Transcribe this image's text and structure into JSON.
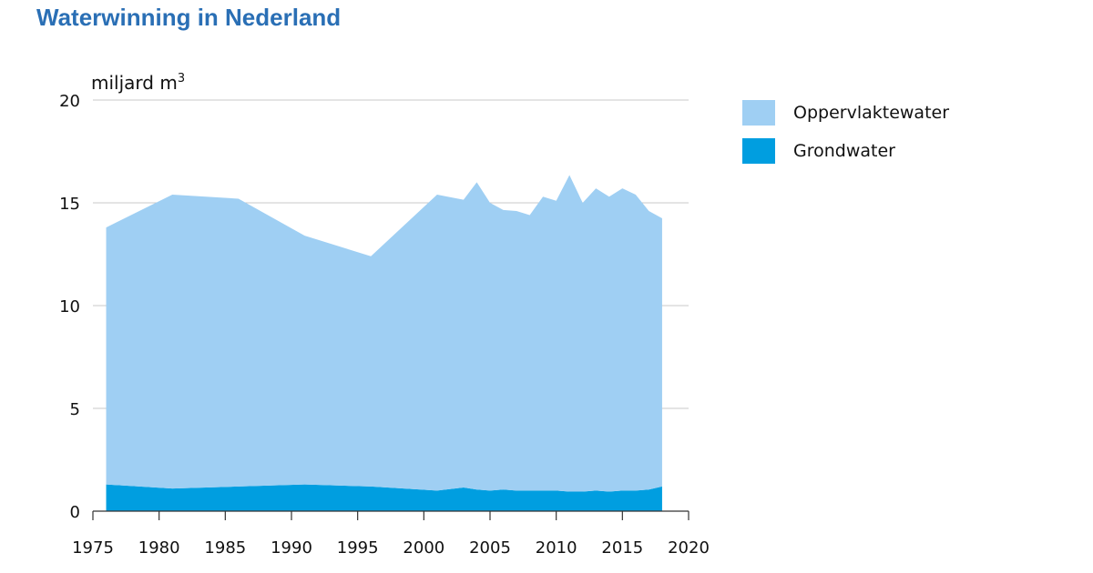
{
  "page": {
    "title": "Waterwinning in Nederland"
  },
  "chart_data": {
    "type": "area",
    "stacked": true,
    "title": "Waterwinning in Nederland",
    "ylabel_prefix": "miljard m",
    "ylabel_sup": "3",
    "xlim": [
      1975,
      2020
    ],
    "ylim": [
      0,
      20
    ],
    "xticks": [
      1975,
      1980,
      1985,
      1990,
      1995,
      2000,
      2005,
      2010,
      2015,
      2020
    ],
    "yticks": [
      0,
      5,
      10,
      15,
      20
    ],
    "grid": "horizontal",
    "legend_position": "right",
    "x": [
      1976,
      1981,
      1986,
      1991,
      1996,
      2001,
      2003,
      2004,
      2005,
      2006,
      2007,
      2008,
      2009,
      2010,
      2011,
      2012,
      2013,
      2014,
      2015,
      2016,
      2017,
      2018
    ],
    "series": [
      {
        "name": "Grondwater",
        "color": "#009ee0",
        "values": [
          1.3,
          1.1,
          1.2,
          1.3,
          1.2,
          1.0,
          1.15,
          1.05,
          1.0,
          1.05,
          1.0,
          1.0,
          1.0,
          1.0,
          0.95,
          0.95,
          1.0,
          0.95,
          1.0,
          1.0,
          1.05,
          1.2
        ]
      },
      {
        "name": "Oppervlaktewater",
        "color": "#9fcff3",
        "values": [
          12.5,
          14.3,
          14.0,
          12.1,
          11.2,
          14.4,
          14.0,
          14.95,
          14.0,
          13.6,
          13.6,
          13.4,
          14.3,
          14.1,
          15.4,
          14.05,
          14.7,
          14.35,
          14.7,
          14.4,
          13.55,
          13.05
        ]
      }
    ],
    "legend": [
      {
        "label": "Oppervlaktewater",
        "color": "#9fcff3"
      },
      {
        "label": "Grondwater",
        "color": "#009ee0"
      }
    ]
  }
}
